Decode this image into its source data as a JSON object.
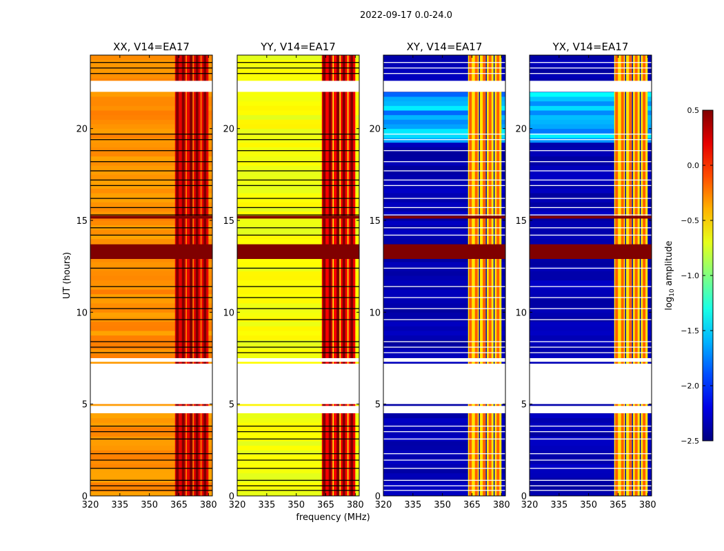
{
  "chart_data": {
    "type": "heatmap",
    "suptitle": "2022-09-17 0.0-24.0",
    "xlabel": "frequency (MHz)",
    "ylabel": "UT (hours)",
    "xlim": [
      320,
      382
    ],
    "ylim": [
      0,
      24
    ],
    "x_ticks": [
      320,
      335,
      350,
      365,
      380
    ],
    "y_ticks": [
      0,
      5,
      10,
      15,
      20
    ],
    "colormap": "jet",
    "colorbar": {
      "label_prefix": "log",
      "label_sub": "10",
      "label_suffix": " amplitude",
      "range": [
        -2.5,
        0.5
      ],
      "ticks": [
        "0.5",
        "0.0",
        "−0.5",
        "−1.0",
        "−1.5",
        "−2.0",
        "−2.5"
      ],
      "tick_values": [
        0.5,
        0.0,
        -0.5,
        -1.0,
        -1.5,
        -2.0,
        -2.5
      ]
    },
    "gaps_hours": [
      [
        4.5,
        4.9
      ],
      [
        5.0,
        7.2
      ],
      [
        7.3,
        7.5
      ],
      [
        22.0,
        22.6
      ]
    ],
    "rfi_band_MHz": [
      363,
      380
    ],
    "panels": [
      {
        "name": "XX",
        "title": "XX, V14=EA17",
        "base_level": -0.3,
        "band_level": 0.35
      },
      {
        "name": "YY",
        "title": "YY, V14=EA17",
        "base_level": -0.65,
        "band_level": 0.3
      },
      {
        "name": "XY",
        "title": "XY, V14=EA17",
        "base_level": -2.35,
        "band_level": -0.4
      },
      {
        "name": "YX",
        "title": "YX, V14=EA17",
        "base_level": -2.35,
        "band_level": -0.4
      }
    ]
  }
}
